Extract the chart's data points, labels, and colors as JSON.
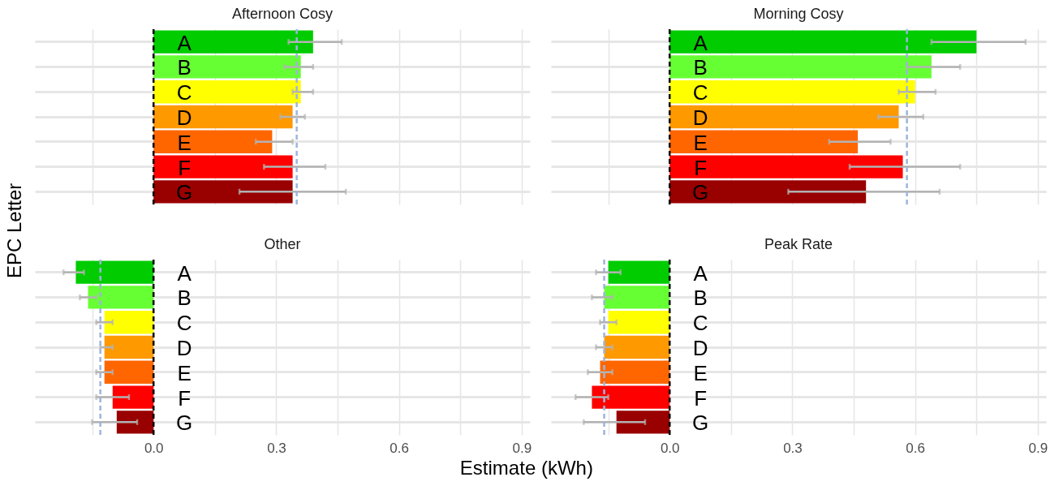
{
  "chart_data": [
    {
      "type": "bar",
      "title": "Afternoon Cosy",
      "ylabel": "EPC Letter",
      "orientation": "horizontal",
      "categories": [
        "A",
        "B",
        "C",
        "D",
        "E",
        "F",
        "G"
      ],
      "values": [
        0.39,
        0.36,
        0.36,
        0.34,
        0.29,
        0.34,
        0.34
      ],
      "colors": [
        "#00cc00",
        "#66ff33",
        "#ffff00",
        "#ff9900",
        "#ff6600",
        "#ff0000",
        "#990000"
      ],
      "errors": [
        [
          0.33,
          0.46
        ],
        [
          0.32,
          0.39
        ],
        [
          0.34,
          0.39
        ],
        [
          0.31,
          0.37
        ],
        [
          0.25,
          0.34
        ],
        [
          0.27,
          0.42
        ],
        [
          0.21,
          0.47
        ]
      ],
      "ref_lines": [
        {
          "axis": "x",
          "value": 0,
          "color": "#000000",
          "line_style": "dashed"
        },
        {
          "axis": "x",
          "value": 0.35,
          "color": "#9db4dd",
          "line_style": "dashed"
        }
      ],
      "xlim": [
        -0.29,
        0.92
      ],
      "xticks": [
        -0.15,
        0,
        0.15,
        0.3,
        0.45,
        0.6,
        0.75,
        0.9
      ],
      "grid": true,
      "tick_labels": false
    },
    {
      "type": "bar",
      "title": "Morning Cosy",
      "orientation": "horizontal",
      "categories": [
        "A",
        "B",
        "C",
        "D",
        "E",
        "F",
        "G"
      ],
      "values": [
        0.75,
        0.64,
        0.6,
        0.56,
        0.46,
        0.57,
        0.48
      ],
      "colors": [
        "#00cc00",
        "#66ff33",
        "#ffff00",
        "#ff9900",
        "#ff6600",
        "#ff0000",
        "#990000"
      ],
      "errors": [
        [
          0.64,
          0.87
        ],
        [
          0.58,
          0.71
        ],
        [
          0.56,
          0.65
        ],
        [
          0.51,
          0.62
        ],
        [
          0.39,
          0.54
        ],
        [
          0.44,
          0.71
        ],
        [
          0.29,
          0.66
        ]
      ],
      "ref_lines": [
        {
          "axis": "x",
          "value": 0,
          "color": "#000000",
          "line_style": "dashed"
        },
        {
          "axis": "x",
          "value": 0.58,
          "color": "#9db4dd",
          "line_style": "dashed"
        }
      ],
      "xlim": [
        -0.29,
        0.92
      ],
      "xticks": [
        -0.15,
        0,
        0.15,
        0.3,
        0.45,
        0.6,
        0.75,
        0.9
      ],
      "grid": true,
      "tick_labels": false
    },
    {
      "type": "bar",
      "title": "Other",
      "xlabel": "Estimate (kWh)",
      "orientation": "horizontal",
      "categories": [
        "A",
        "B",
        "C",
        "D",
        "E",
        "F",
        "G"
      ],
      "values": [
        -0.19,
        -0.16,
        -0.12,
        -0.12,
        -0.12,
        -0.1,
        -0.09
      ],
      "colors": [
        "#00cc00",
        "#66ff33",
        "#ffff00",
        "#ff9900",
        "#ff6600",
        "#ff0000",
        "#990000"
      ],
      "errors": [
        [
          -0.22,
          -0.17
        ],
        [
          -0.18,
          -0.14
        ],
        [
          -0.14,
          -0.1
        ],
        [
          -0.13,
          -0.1
        ],
        [
          -0.14,
          -0.1
        ],
        [
          -0.14,
          -0.06
        ],
        [
          -0.15,
          -0.04
        ]
      ],
      "ref_lines": [
        {
          "axis": "x",
          "value": 0,
          "color": "#000000",
          "line_style": "dashed"
        },
        {
          "axis": "x",
          "value": -0.13,
          "color": "#9db4dd",
          "line_style": "dashed"
        }
      ],
      "xlim": [
        -0.29,
        0.92
      ],
      "xticks": [
        {
          "value": -0.15,
          "label": null
        },
        {
          "value": 0,
          "label": "0.0"
        },
        {
          "value": 0.15,
          "label": null
        },
        0.3,
        {
          "value": 0.45,
          "label": null
        },
        0.6,
        {
          "value": 0.75,
          "label": null
        },
        0.9
      ],
      "grid": true,
      "tick_labels": "x"
    },
    {
      "type": "bar",
      "title": "Peak Rate",
      "orientation": "horizontal",
      "categories": [
        "A",
        "B",
        "C",
        "D",
        "E",
        "F",
        "G"
      ],
      "values": [
        -0.15,
        -0.16,
        -0.15,
        -0.16,
        -0.17,
        -0.19,
        -0.13
      ],
      "colors": [
        "#00cc00",
        "#66ff33",
        "#ffff00",
        "#ff9900",
        "#ff6600",
        "#ff0000",
        "#990000"
      ],
      "errors": [
        [
          -0.18,
          -0.12
        ],
        [
          -0.19,
          -0.14
        ],
        [
          -0.17,
          -0.13
        ],
        [
          -0.18,
          -0.14
        ],
        [
          -0.2,
          -0.14
        ],
        [
          -0.23,
          -0.15
        ],
        [
          -0.21,
          -0.06
        ]
      ],
      "ref_lines": [
        {
          "axis": "x",
          "value": 0,
          "color": "#000000",
          "line_style": "dashed"
        },
        {
          "axis": "x",
          "value": -0.16,
          "color": "#9db4dd",
          "line_style": "dashed"
        }
      ],
      "xlim": [
        -0.29,
        0.92
      ],
      "xticks": [
        {
          "value": -0.15,
          "label": null
        },
        {
          "value": 0,
          "label": "0.0"
        },
        {
          "value": 0.15,
          "label": null
        },
        0.3,
        {
          "value": 0.45,
          "label": null
        },
        0.6,
        {
          "value": 0.75,
          "label": null
        },
        0.9
      ],
      "grid": true,
      "tick_labels": "x"
    }
  ]
}
